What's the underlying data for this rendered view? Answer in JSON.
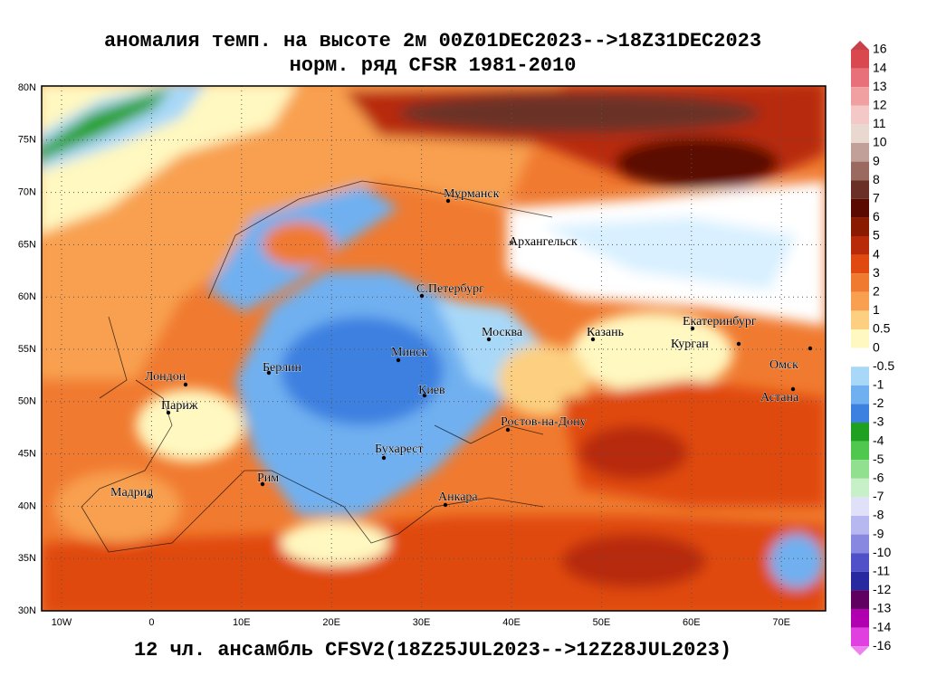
{
  "title": {
    "line1": "аномалия темп. на высоте 2м 00Z01DEC2023-->18Z31DEC2023",
    "line2": "норм. ряд CFSR 1981-2010"
  },
  "caption": "12 чл. ансамбль CFSV2(18Z25JUL2023-->12Z28JUL2023)",
  "axes": {
    "lon_labels": [
      "10W",
      "0",
      "10E",
      "20E",
      "30E",
      "40E",
      "50E",
      "60E",
      "70E"
    ],
    "lat_labels": [
      "80N",
      "75N",
      "70N",
      "65N",
      "60N",
      "55N",
      "50N",
      "45N",
      "40N",
      "35N",
      "30N"
    ]
  },
  "cities": [
    "Мурманск",
    "Архангельск",
    "С.Петербург",
    "Москва",
    "Казань",
    "Екатеринбург",
    "Курган",
    "Омск",
    "Астана",
    "Минск",
    "Берлин",
    "Лондон",
    "Париж",
    "Киев",
    "Ростов-на-Дону",
    "Бухарест",
    "Рим",
    "Мадрид",
    "Анкара"
  ],
  "colorbar": {
    "labels": [
      "16",
      "14",
      "13",
      "12",
      "11",
      "10",
      "9",
      "8",
      "7",
      "6",
      "5",
      "4",
      "3",
      "2",
      "1",
      "0.5",
      "0",
      "-0.5",
      "-1",
      "-2",
      "-3",
      "-4",
      "-5",
      "-6",
      "-7",
      "-8",
      "-9",
      "-10",
      "-11",
      "-12",
      "-13",
      "-14",
      "-16"
    ],
    "colors": [
      "#c84048",
      "#d9474f",
      "#e8707a",
      "#f0a0a0",
      "#f5c8c8",
      "#e8d8d0",
      "#c0a098",
      "#9a6a60",
      "#6a3028",
      "#5a0a00",
      "#8a1a00",
      "#b82a08",
      "#e04a10",
      "#f07a30",
      "#f8a050",
      "#fcd080",
      "#fff8c0",
      "#ffffff",
      "#a8d8f8",
      "#70b0f0",
      "#3c80e0",
      "#20a020",
      "#50c850",
      "#90e090",
      "#c8f0c8",
      "#e0e0f8",
      "#b8b8f0",
      "#8888e0",
      "#5050c8",
      "#2828a0",
      "#600060",
      "#b000b0",
      "#e040e0",
      "#f080f0"
    ]
  }
}
